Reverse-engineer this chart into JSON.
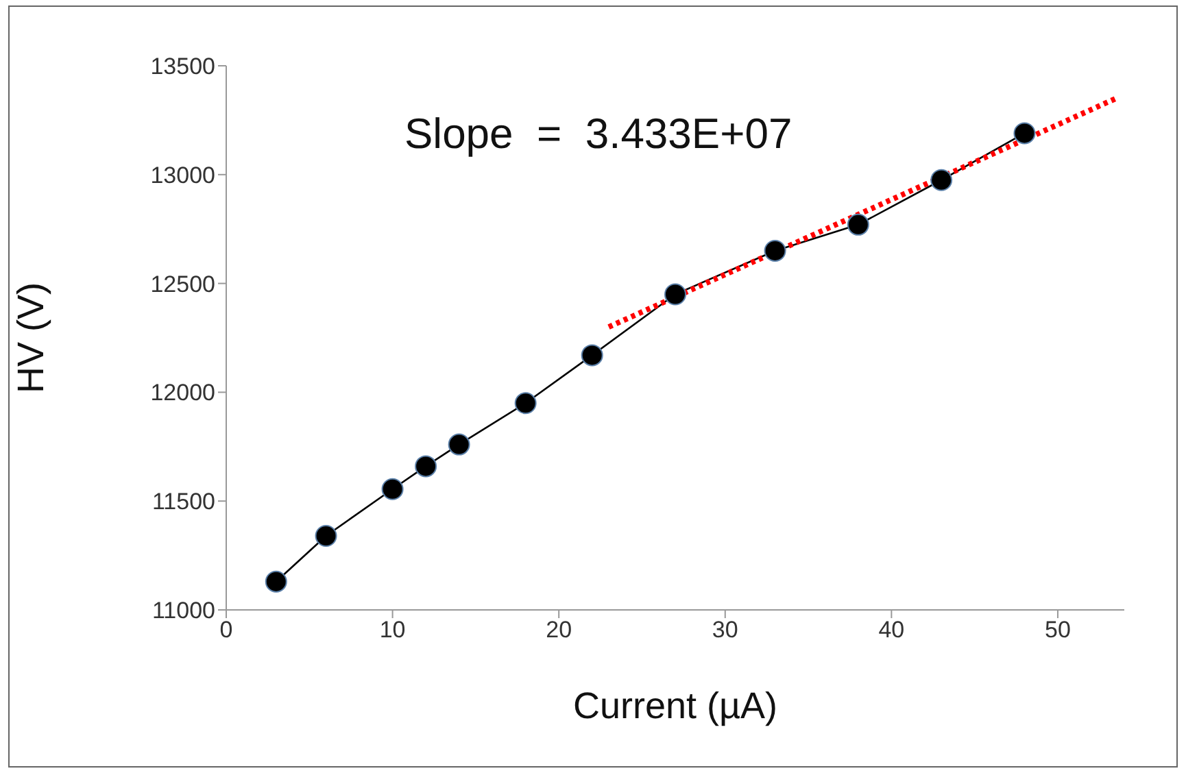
{
  "chart_data": {
    "type": "line",
    "xlabel": "Current (µA)",
    "ylabel": "HV (V)",
    "annotations": [
      "Slope  =  3.433E+07"
    ],
    "xlim": [
      0,
      54
    ],
    "xticks": [
      0,
      10,
      20,
      30,
      40,
      50
    ],
    "ylim": [
      11000,
      13500
    ],
    "yticks": [
      11000,
      11500,
      12000,
      12500,
      13000,
      13500
    ],
    "series": [
      {
        "color": "#000000",
        "marker": "circle",
        "x": [
          3,
          6,
          10,
          12,
          14,
          18,
          22,
          27,
          33,
          38,
          43,
          48
        ],
        "values": [
          11130,
          11340,
          11555,
          11660,
          11760,
          11950,
          12170,
          12450,
          12650,
          12770,
          12975,
          13190
        ]
      },
      {
        "color": "#ff0000",
        "marker": "none",
        "line_style": "dotted",
        "x": [
          23,
          53.5
        ],
        "values": [
          12300,
          13350
        ]
      }
    ]
  }
}
